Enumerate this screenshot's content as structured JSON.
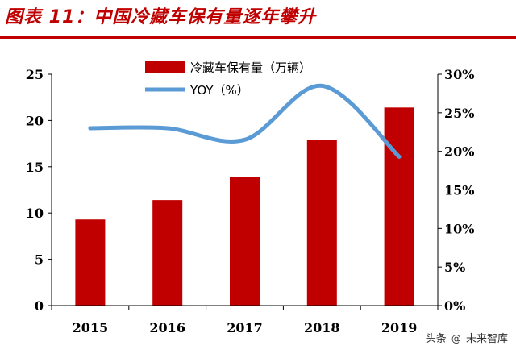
{
  "figure_title": "图表 11：中国冷藏车保有量逐年攀升",
  "watermark": {
    "prefix": "头条",
    "name": "未来智库"
  },
  "colors": {
    "bar": "#c00000",
    "line": "#5b9bd5",
    "title": "#c00000",
    "rule": "#c00000",
    "axis": "#000000"
  },
  "chart_data": {
    "type": "bar",
    "categories": [
      "2015",
      "2016",
      "2017",
      "2018",
      "2019"
    ],
    "series": [
      {
        "name": "冷藏车保有量（万辆）",
        "type": "bar",
        "axis": "left",
        "values": [
          9.3,
          11.4,
          13.9,
          17.9,
          21.4
        ]
      },
      {
        "name": "YOY（%）",
        "type": "line",
        "axis": "right",
        "values": [
          23.0,
          23.0,
          21.5,
          28.5,
          19.3
        ]
      }
    ],
    "y_left": {
      "lim": [
        0,
        25
      ],
      "ticks": [
        "0",
        "5",
        "10",
        "15",
        "20",
        "25"
      ]
    },
    "y_right": {
      "lim": [
        0,
        30
      ],
      "ticks": [
        "0%",
        "5%",
        "10%",
        "15%",
        "20%",
        "25%",
        "30%"
      ]
    },
    "legend_position": "top-center",
    "grid": false
  }
}
